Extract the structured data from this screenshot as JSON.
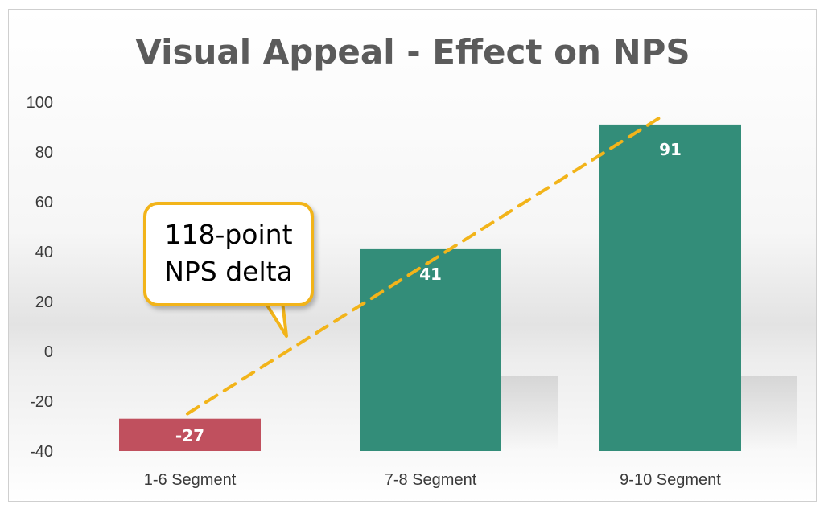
{
  "chart_data": {
    "type": "bar",
    "title": "Visual Appeal - Effect on NPS",
    "categories": [
      "1-6 Segment",
      "7-8 Segment",
      "9-10 Segment"
    ],
    "values": [
      -27,
      41,
      91
    ],
    "data_labels": [
      "-27",
      "41",
      "91"
    ],
    "bar_colors": [
      "#c0505e",
      "#338d79"
    ],
    "ylim": [
      -40,
      100
    ],
    "yticks": [
      100,
      80,
      60,
      40,
      20,
      0,
      -20,
      -40
    ],
    "ytick_labels": [
      "100",
      "80",
      "60",
      "40",
      "20",
      "0",
      "-20",
      "-40"
    ],
    "grid": false,
    "legend": "none",
    "trendline": {
      "style": "dashed",
      "color": "#f2b41a"
    },
    "annotation": {
      "line1": "118-point",
      "line2": "NPS delta"
    }
  },
  "colors": {
    "positive_bar": "#338d79",
    "negative_bar": "#c0505e",
    "accent": "#f2b41a",
    "title": "#5b5b5b"
  }
}
